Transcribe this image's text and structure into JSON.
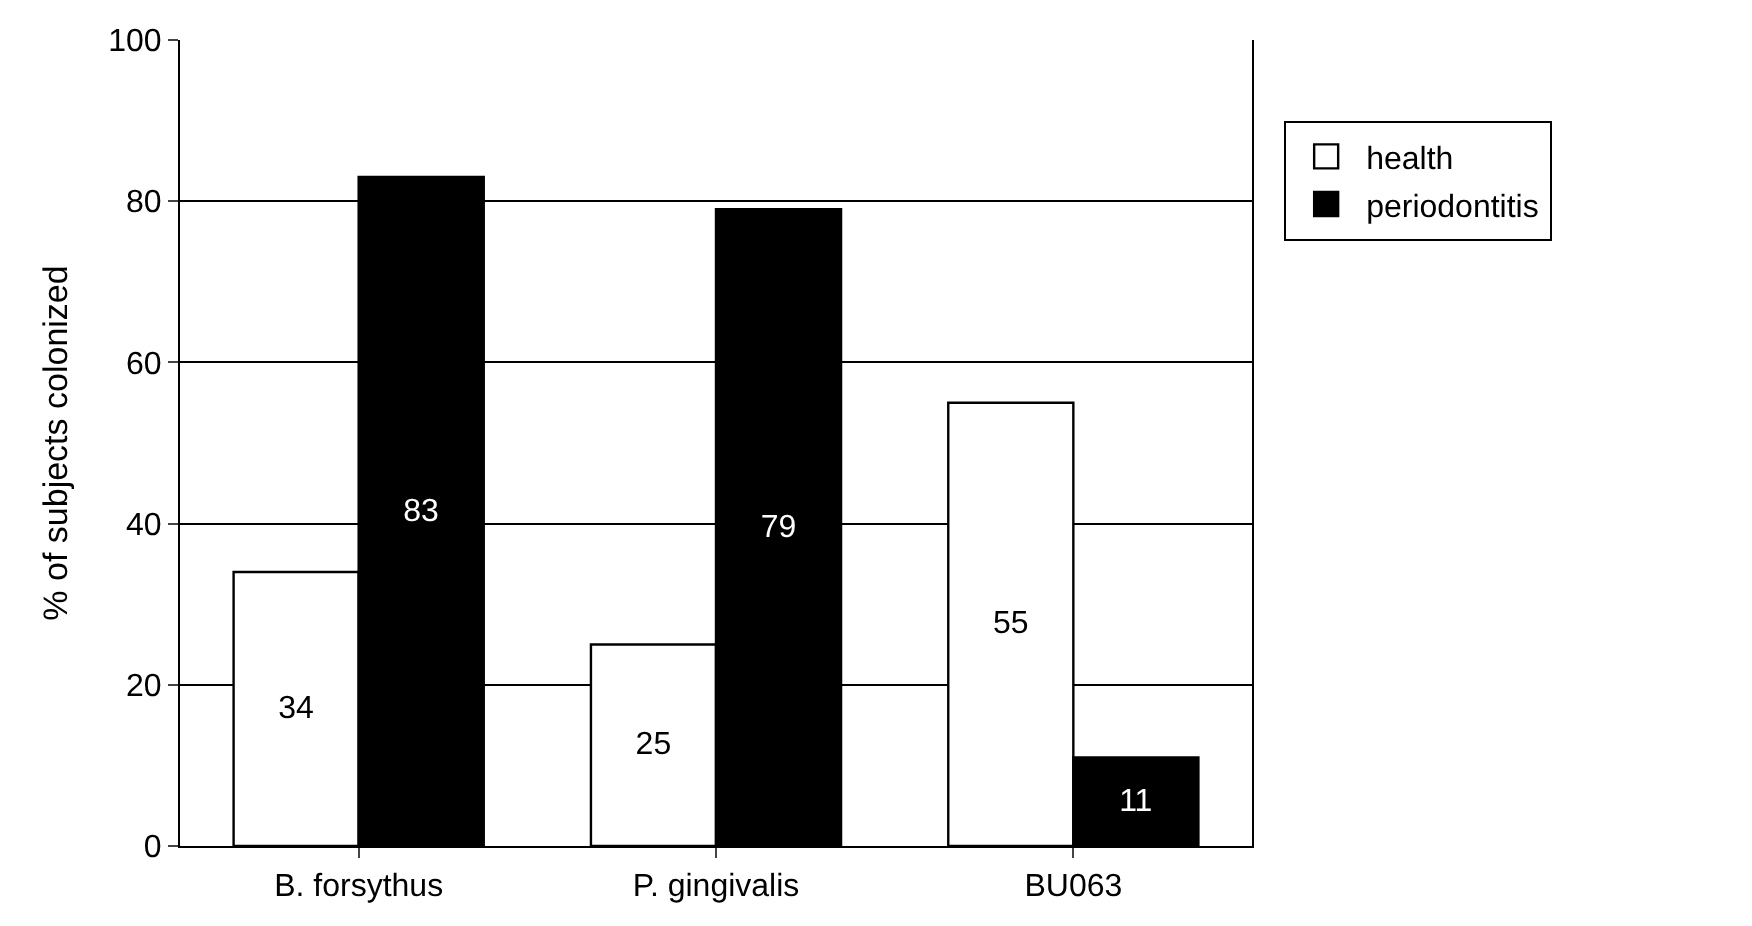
{
  "chart_data": {
    "type": "bar",
    "ylabel": "% of subjects colonized",
    "categories": [
      "B. forsythus",
      "P. gingivalis",
      "BU063"
    ],
    "series": [
      {
        "name": "health",
        "color": "#ffffff",
        "values": [
          34,
          25,
          55
        ]
      },
      {
        "name": "periodontitis",
        "color": "#000000",
        "values": [
          83,
          79,
          11
        ]
      }
    ],
    "ylim": [
      0,
      100
    ],
    "yticks": [
      0,
      20,
      40,
      60,
      80,
      100
    ],
    "grid": "y",
    "legend": "right",
    "data_labels": true
  }
}
